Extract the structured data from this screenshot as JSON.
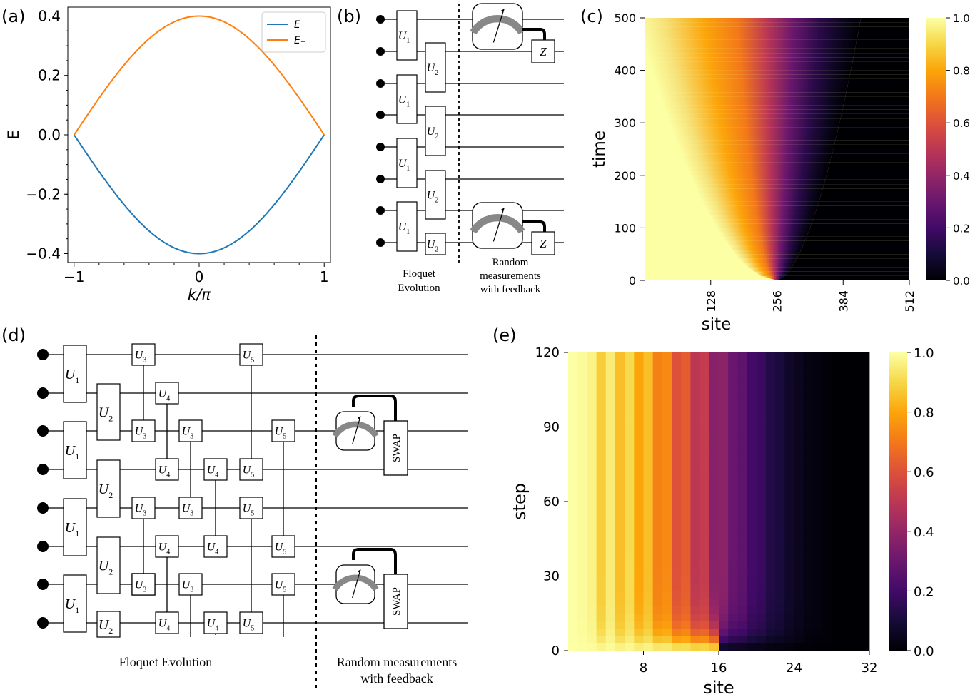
{
  "panels": {
    "a": {
      "label": "(a)"
    },
    "b": {
      "label": "(b)",
      "left_caption": [
        "Floquet",
        "Evolution"
      ],
      "right_caption": [
        "Random",
        "measurements",
        "with feedback"
      ],
      "gate_z": "Z"
    },
    "c": {
      "label": "(c)"
    },
    "d": {
      "label": "(d)",
      "left_caption": "Floquet Evolution",
      "right_caption": [
        "Random measurements",
        "with feedback"
      ],
      "gate_swap": "SWAP"
    },
    "e": {
      "label": "(e)"
    }
  },
  "gates": {
    "U1": "U",
    "U2": "U",
    "U3": "U",
    "U4": "U",
    "U5": "U",
    "sub1": "1",
    "sub2": "2",
    "sub3": "3",
    "sub4": "4",
    "sub5": "5"
  },
  "chart_data": [
    {
      "id": "a",
      "type": "line",
      "xlabel": "k/π",
      "ylabel": "E",
      "xlim": [
        -1.05,
        1.05
      ],
      "ylim": [
        -0.43,
        0.43
      ],
      "xticks": [
        -1,
        0,
        1
      ],
      "xtick_labels": [
        "−1",
        "0",
        "1"
      ],
      "yticks": [
        -0.4,
        -0.2,
        0.0,
        0.2,
        0.4
      ],
      "ytick_labels": [
        "−0.4",
        "−0.2",
        "0.0",
        "0.2",
        "0.4"
      ],
      "legend_position": "top-right",
      "series": [
        {
          "name": "E₊",
          "color": "#1f77b4",
          "function": "-0.4*cos(pi*x/2)",
          "x_range": [
            -1,
            1
          ]
        },
        {
          "name": "E₋",
          "color": "#ff7f0e",
          "function": "0.4*cos(pi*x/2)",
          "x_range": [
            -1,
            1
          ]
        }
      ]
    },
    {
      "id": "c",
      "type": "heatmap",
      "xlabel": "site",
      "ylabel": "time",
      "xlim": [
        0,
        512
      ],
      "ylim": [
        0,
        500
      ],
      "xticks": [
        128,
        256,
        384,
        512
      ],
      "yticks": [
        0,
        100,
        200,
        300,
        400,
        500
      ],
      "colormap": "inferno",
      "colorbar_ticks": [
        0.0,
        0.2,
        0.4,
        0.6,
        0.8,
        1.0
      ],
      "colorbar_labels": [
        "0.0",
        "0.2",
        "0.4",
        "0.6",
        "0.8",
        "1.0"
      ],
      "description_values": {
        "front_center_site_at_time_0": 256,
        "front_center_site_at_time_500": 170
      }
    },
    {
      "id": "e",
      "type": "heatmap",
      "xlabel": "site",
      "ylabel": "step",
      "xlim": [
        0,
        32
      ],
      "ylim": [
        0,
        120
      ],
      "xticks": [
        8,
        16,
        24,
        32
      ],
      "yticks": [
        0,
        30,
        60,
        90,
        120
      ],
      "colormap": "inferno",
      "colorbar_ticks": [
        0.0,
        0.2,
        0.4,
        0.6,
        0.8,
        1.0
      ],
      "colorbar_labels": [
        "0.0",
        "0.2",
        "0.4",
        "0.6",
        "0.8",
        "1.0"
      ],
      "site_values": [
        1.0,
        0.99,
        0.97,
        0.96,
        0.95,
        0.93,
        0.91,
        0.88,
        0.85,
        0.8,
        0.74,
        0.68,
        0.63,
        0.58,
        0.52,
        0.45,
        0.38,
        0.32,
        0.27,
        0.22,
        0.18,
        0.14,
        0.11,
        0.08,
        0.05,
        0.03,
        0.02,
        0.01,
        0.0,
        0.0,
        0.0,
        0.0
      ],
      "odd_site_damping": 0.08,
      "initial_state": "sites 1–16 at 1.0, sites 17–32 at 0.0"
    }
  ]
}
